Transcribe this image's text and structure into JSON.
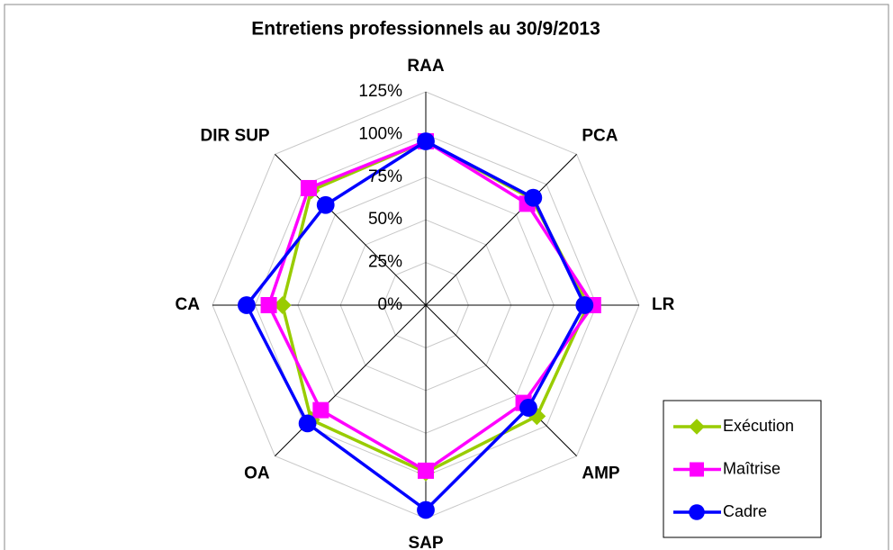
{
  "chart_data": {
    "type": "radar",
    "title": "Entretiens professionnels au 30/9/2013",
    "categories": [
      "RAA",
      "PCA",
      "LR",
      "AMP",
      "SAP",
      "OA",
      "CA",
      "DIR SUP"
    ],
    "series": [
      {
        "name": "Exécution",
        "color": "#99cc00",
        "marker": "diamond",
        "values": [
          96,
          88,
          95,
          92,
          98,
          95,
          84,
          95
        ]
      },
      {
        "name": "Maîtrise",
        "color": "#ff00ff",
        "marker": "square",
        "values": [
          96,
          84,
          98,
          81,
          97,
          87,
          92,
          97
        ]
      },
      {
        "name": "Cadre",
        "color": "#0000ff",
        "marker": "circle",
        "values": [
          96,
          89,
          93,
          85,
          120,
          98,
          105,
          83
        ]
      }
    ],
    "ylim": [
      0,
      125
    ],
    "yticks": [
      {
        "value": 0,
        "label": "0%"
      },
      {
        "value": 25,
        "label": "25%"
      },
      {
        "value": 50,
        "label": "50%"
      },
      {
        "value": 75,
        "label": "75%"
      },
      {
        "value": 100,
        "label": "100%"
      },
      {
        "value": 125,
        "label": "125%"
      }
    ],
    "grid": true,
    "legend": "lower right"
  }
}
